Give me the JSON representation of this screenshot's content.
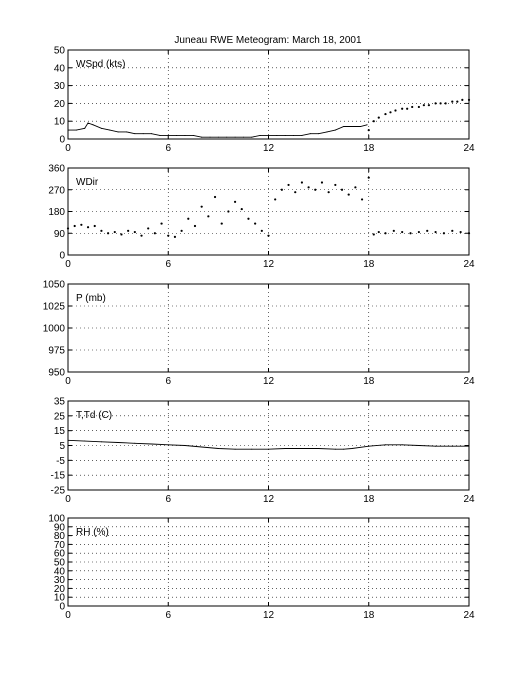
{
  "title": "Juneau RWE Meteogram:      March 18, 2001",
  "chart_data": [
    {
      "type": "line",
      "label": "WSpd (kts)",
      "xlim": [
        0,
        24
      ],
      "xticks": [
        0,
        6,
        12,
        18,
        24
      ],
      "ylim": [
        0,
        50
      ],
      "yticks": [
        0,
        10,
        20,
        30,
        40,
        50
      ],
      "grid": true,
      "series": [
        {
          "x": [
            0,
            0.5,
            1,
            1.2,
            1.5,
            2,
            2.5,
            3,
            3.5,
            4,
            4.5,
            5,
            5.5,
            6,
            6.5,
            7,
            7.5,
            8,
            8.5,
            9,
            9.5,
            10,
            10.5,
            11,
            11.5,
            12,
            12.5,
            13,
            13.5,
            14,
            14.5,
            15,
            15.5,
            16,
            16.5,
            17,
            17.5,
            17.9
          ],
          "y": [
            5,
            5,
            6,
            9,
            8,
            6,
            5,
            4,
            4,
            3,
            3,
            3,
            2,
            2,
            2,
            2,
            2,
            1,
            1,
            1,
            1,
            1,
            1,
            1,
            2,
            2,
            2,
            2,
            2,
            2,
            3,
            3,
            4,
            5,
            7,
            7,
            7,
            8
          ]
        },
        {
          "style": "dots",
          "x": [
            18,
            18.3,
            18.6,
            19,
            19.3,
            19.6,
            20,
            20.3,
            20.6,
            21,
            21.3,
            21.6,
            22,
            22.3,
            22.6,
            23,
            23.3,
            23.6,
            24
          ],
          "y": [
            5,
            10,
            12,
            14,
            15,
            16,
            17,
            17,
            18,
            18,
            19,
            19,
            20,
            20,
            20,
            21,
            21,
            22,
            22
          ]
        }
      ]
    },
    {
      "type": "scatter",
      "label": "WDir",
      "xlim": [
        0,
        24
      ],
      "xticks": [
        0,
        6,
        12,
        18,
        24
      ],
      "ylim": [
        0,
        360
      ],
      "yticks": [
        0,
        90,
        180,
        270,
        360
      ],
      "grid": true,
      "series": [
        {
          "x": [
            0,
            0.4,
            0.8,
            1.2,
            1.6,
            2,
            2.4,
            2.8,
            3.2,
            3.6,
            4,
            4.4,
            4.8,
            5.2,
            5.6,
            6,
            6.4,
            6.8,
            7.2,
            7.6,
            8,
            8.4,
            8.8,
            9.2,
            9.6,
            10,
            10.4,
            10.8,
            11.2,
            11.6,
            12,
            12.4,
            12.8,
            13.2,
            13.6,
            14,
            14.4,
            14.8,
            15.2,
            15.6,
            16,
            16.4,
            16.8,
            17.2,
            17.6,
            18,
            18.3,
            18.6,
            19,
            19.5,
            20,
            20.5,
            21,
            21.5,
            22,
            22.5,
            23,
            23.5,
            24
          ],
          "y": [
            110,
            120,
            125,
            115,
            120,
            100,
            90,
            95,
            85,
            100,
            95,
            80,
            110,
            90,
            130,
            80,
            75,
            100,
            150,
            120,
            200,
            160,
            240,
            130,
            180,
            220,
            190,
            150,
            130,
            100,
            80,
            230,
            270,
            290,
            260,
            300,
            280,
            270,
            300,
            260,
            290,
            270,
            250,
            280,
            230,
            320,
            85,
            95,
            90,
            100,
            95,
            90,
            95,
            100,
            95,
            90,
            100,
            95,
            90
          ]
        }
      ]
    },
    {
      "type": "line",
      "label": "P (mb)",
      "xlim": [
        0,
        24
      ],
      "xticks": [
        0,
        6,
        12,
        18,
        24
      ],
      "ylim": [
        950,
        1050
      ],
      "yticks": [
        950,
        975,
        1000,
        1025,
        1050
      ],
      "grid": true,
      "series": []
    },
    {
      "type": "line",
      "label": "T,Td (C)",
      "xlim": [
        0,
        24
      ],
      "xticks": [
        0,
        6,
        12,
        18,
        24
      ],
      "ylim": [
        -25,
        35
      ],
      "yticks": [
        -25,
        -15,
        -5,
        5,
        15,
        25,
        35
      ],
      "grid": true,
      "series": [
        {
          "x": [
            0,
            1,
            2,
            3,
            4,
            5,
            6,
            7,
            8,
            9,
            10,
            11,
            12,
            13,
            14,
            15,
            16,
            16.5,
            17,
            18,
            19,
            20,
            21,
            22,
            23,
            24
          ],
          "y": [
            8.5,
            8,
            7.5,
            7,
            6.5,
            6,
            5.5,
            5,
            4,
            3,
            2.5,
            2.5,
            2.5,
            3,
            3,
            3,
            2.5,
            2.5,
            3,
            4.5,
            5.5,
            5.5,
            5,
            4.5,
            4.5,
            4.5
          ]
        }
      ]
    },
    {
      "type": "line",
      "label": "RH (%)",
      "xlim": [
        0,
        24
      ],
      "xticks": [
        0,
        6,
        12,
        18,
        24
      ],
      "ylim": [
        0,
        100
      ],
      "yticks": [
        0,
        10,
        20,
        30,
        40,
        50,
        60,
        70,
        80,
        90,
        100
      ],
      "grid": true,
      "series": []
    }
  ]
}
